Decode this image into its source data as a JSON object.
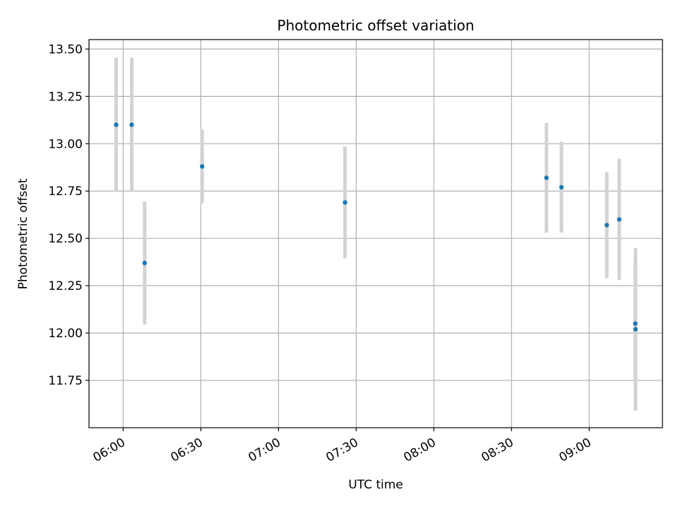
{
  "chart_data": {
    "type": "scatter",
    "title": "Photometric offset variation",
    "xlabel": "UTC time",
    "ylabel": "Photometric offset",
    "x_unit": "minutes after 00:00 UTC",
    "xlim": [
      346.8,
      568.3
    ],
    "ylim": [
      11.5,
      13.55
    ],
    "grid": true,
    "x_ticks": [
      {
        "value": 360,
        "label": "06:00"
      },
      {
        "value": 390,
        "label": "06:30"
      },
      {
        "value": 420,
        "label": "07:00"
      },
      {
        "value": 450,
        "label": "07:30"
      },
      {
        "value": 480,
        "label": "08:00"
      },
      {
        "value": 510,
        "label": "08:30"
      },
      {
        "value": 540,
        "label": "09:00"
      }
    ],
    "y_ticks": [
      {
        "value": 11.75,
        "label": "11.75"
      },
      {
        "value": 12.0,
        "label": "12.00"
      },
      {
        "value": 12.25,
        "label": "12.25"
      },
      {
        "value": 12.5,
        "label": "12.50"
      },
      {
        "value": 12.75,
        "label": "12.75"
      },
      {
        "value": 13.0,
        "label": "13.00"
      },
      {
        "value": 13.25,
        "label": "13.25"
      },
      {
        "value": 13.5,
        "label": "13.50"
      }
    ],
    "series": [
      {
        "name": "Photometric offset",
        "color": "#1f77b4",
        "errorbar_color": "#d3d3d3",
        "points": [
          {
            "x": 357.3,
            "y": 13.1,
            "err": 0.355
          },
          {
            "x": 363.3,
            "y": 13.1,
            "err": 0.355
          },
          {
            "x": 368.3,
            "y": 12.37,
            "err": 0.325
          },
          {
            "x": 390.5,
            "y": 12.88,
            "err": 0.195
          },
          {
            "x": 445.7,
            "y": 12.69,
            "err": 0.295
          },
          {
            "x": 523.5,
            "y": 12.82,
            "err": 0.29
          },
          {
            "x": 529.3,
            "y": 12.77,
            "err": 0.24
          },
          {
            "x": 546.8,
            "y": 12.57,
            "err": 0.28
          },
          {
            "x": 551.6,
            "y": 12.6,
            "err": 0.32
          },
          {
            "x": 557.8,
            "y": 12.05,
            "err": 0.33
          },
          {
            "x": 557.9,
            "y": 12.02,
            "err": 0.43
          }
        ]
      }
    ]
  },
  "colors": {
    "grid": "#b0b0b0",
    "axes": "#000000",
    "marker": "#1f77b4",
    "errorbar": "#d3d3d3"
  }
}
